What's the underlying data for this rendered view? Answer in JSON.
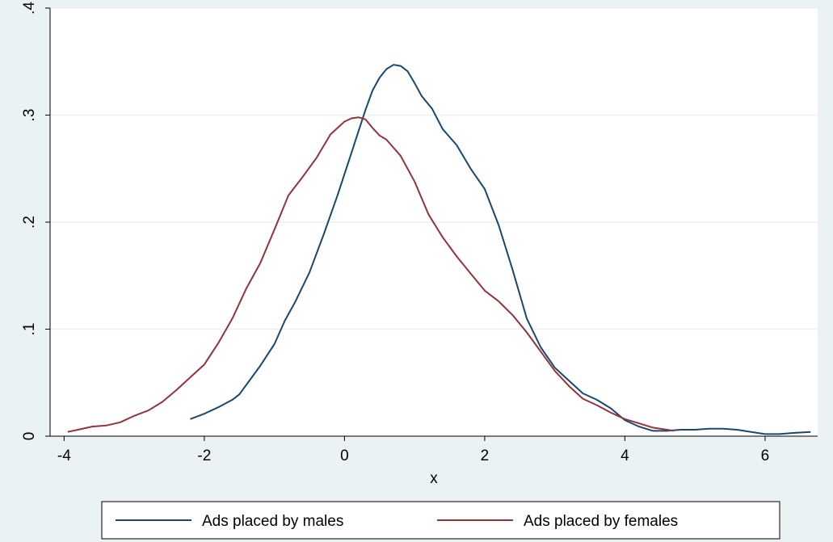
{
  "chart_data": {
    "type": "line",
    "title": "",
    "xlabel": "x",
    "ylabel": "",
    "xlim": [
      -4.2,
      6.75
    ],
    "ylim": [
      0,
      0.4
    ],
    "x_ticks": [
      -4,
      -2,
      0,
      2,
      4,
      6
    ],
    "x_tick_labels": [
      "-4",
      "-2",
      "0",
      "2",
      "4",
      "6"
    ],
    "y_ticks": [
      0,
      0.1,
      0.2,
      0.3,
      0.4
    ],
    "y_tick_labels": [
      "0",
      ".1",
      ".2",
      ".3",
      ".4"
    ],
    "grid": "horizontal",
    "legend_position": "bottom",
    "colors": {
      "background": "#eaf2f3",
      "plot_background": "#ffffff",
      "grid": "#eaf2f3"
    },
    "series": [
      {
        "name": "Ads placed by males",
        "color": "#1a476f",
        "points": [
          [
            -2.2,
            0.016
          ],
          [
            -2.0,
            0.021
          ],
          [
            -1.8,
            0.027
          ],
          [
            -1.6,
            0.034
          ],
          [
            -1.5,
            0.039
          ],
          [
            -1.4,
            0.048
          ],
          [
            -1.2,
            0.066
          ],
          [
            -1.0,
            0.086
          ],
          [
            -0.85,
            0.108
          ],
          [
            -0.7,
            0.126
          ],
          [
            -0.5,
            0.153
          ],
          [
            -0.3,
            0.188
          ],
          [
            -0.1,
            0.225
          ],
          [
            0.0,
            0.245
          ],
          [
            0.1,
            0.265
          ],
          [
            0.2,
            0.285
          ],
          [
            0.3,
            0.305
          ],
          [
            0.4,
            0.323
          ],
          [
            0.5,
            0.335
          ],
          [
            0.6,
            0.343
          ],
          [
            0.7,
            0.347
          ],
          [
            0.8,
            0.346
          ],
          [
            0.9,
            0.341
          ],
          [
            1.0,
            0.33
          ],
          [
            1.1,
            0.318
          ],
          [
            1.25,
            0.306
          ],
          [
            1.4,
            0.287
          ],
          [
            1.6,
            0.272
          ],
          [
            1.8,
            0.25
          ],
          [
            2.0,
            0.231
          ],
          [
            2.2,
            0.197
          ],
          [
            2.4,
            0.155
          ],
          [
            2.6,
            0.11
          ],
          [
            2.8,
            0.083
          ],
          [
            3.0,
            0.064
          ],
          [
            3.2,
            0.052
          ],
          [
            3.4,
            0.04
          ],
          [
            3.6,
            0.034
          ],
          [
            3.8,
            0.026
          ],
          [
            4.0,
            0.015
          ],
          [
            4.2,
            0.009
          ],
          [
            4.4,
            0.005
          ],
          [
            4.6,
            0.005
          ],
          [
            4.8,
            0.006
          ],
          [
            5.0,
            0.006
          ],
          [
            5.2,
            0.007
          ],
          [
            5.4,
            0.007
          ],
          [
            5.6,
            0.006
          ],
          [
            5.8,
            0.004
          ],
          [
            6.0,
            0.002
          ],
          [
            6.2,
            0.002
          ],
          [
            6.4,
            0.003
          ],
          [
            6.65,
            0.004
          ]
        ]
      },
      {
        "name": "Ads placed by females",
        "color": "#90353b",
        "points": [
          [
            -3.95,
            0.004
          ],
          [
            -3.8,
            0.006
          ],
          [
            -3.6,
            0.009
          ],
          [
            -3.4,
            0.01
          ],
          [
            -3.2,
            0.013
          ],
          [
            -3.0,
            0.019
          ],
          [
            -2.8,
            0.024
          ],
          [
            -2.6,
            0.032
          ],
          [
            -2.4,
            0.043
          ],
          [
            -2.2,
            0.055
          ],
          [
            -2.0,
            0.067
          ],
          [
            -1.8,
            0.087
          ],
          [
            -1.6,
            0.11
          ],
          [
            -1.4,
            0.138
          ],
          [
            -1.2,
            0.162
          ],
          [
            -1.0,
            0.193
          ],
          [
            -0.8,
            0.225
          ],
          [
            -0.6,
            0.242
          ],
          [
            -0.4,
            0.26
          ],
          [
            -0.2,
            0.282
          ],
          [
            0.0,
            0.294
          ],
          [
            0.1,
            0.297
          ],
          [
            0.2,
            0.298
          ],
          [
            0.3,
            0.296
          ],
          [
            0.4,
            0.288
          ],
          [
            0.5,
            0.281
          ],
          [
            0.6,
            0.277
          ],
          [
            0.8,
            0.262
          ],
          [
            1.0,
            0.238
          ],
          [
            1.2,
            0.207
          ],
          [
            1.4,
            0.186
          ],
          [
            1.6,
            0.168
          ],
          [
            1.8,
            0.152
          ],
          [
            2.0,
            0.136
          ],
          [
            2.2,
            0.126
          ],
          [
            2.4,
            0.113
          ],
          [
            2.6,
            0.097
          ],
          [
            2.8,
            0.079
          ],
          [
            3.0,
            0.061
          ],
          [
            3.2,
            0.047
          ],
          [
            3.4,
            0.035
          ],
          [
            3.6,
            0.029
          ],
          [
            3.8,
            0.022
          ],
          [
            4.0,
            0.016
          ],
          [
            4.2,
            0.012
          ],
          [
            4.4,
            0.008
          ],
          [
            4.6,
            0.006
          ],
          [
            4.7,
            0.005
          ]
        ]
      }
    ]
  }
}
